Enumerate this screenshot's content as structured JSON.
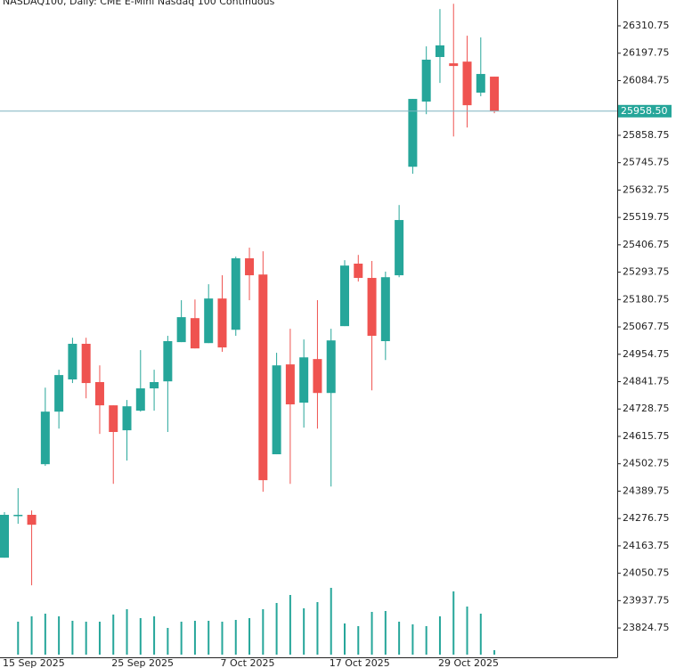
{
  "chart_data": {
    "type": "candlestick",
    "title": "NASDAQ100, Daily:  CME E-Mini Nasdaq 100 Continuous",
    "categories": [
      "15 Sep 2025",
      null,
      null,
      null,
      null,
      null,
      null,
      null,
      "25 Sep 2025",
      null,
      null,
      null,
      null,
      null,
      null,
      null,
      "7 Oct 2025",
      null,
      null,
      null,
      null,
      null,
      null,
      null,
      "17 Oct 2025",
      null,
      null,
      null,
      null,
      null,
      null,
      null,
      "29 Oct 2025",
      null,
      null,
      null,
      null
    ],
    "open": [
      24115,
      24288,
      24292,
      24501,
      24718,
      24851,
      24998,
      24840,
      24744,
      24641,
      24722,
      24814,
      24843,
      25005,
      25104,
      25001,
      25185,
      25056,
      25351,
      25284,
      24542,
      24913,
      24755,
      24935,
      24795,
      25071,
      25329,
      25270,
      25009,
      25281,
      25729,
      25998,
      26182,
      26156,
      26163,
      26035,
      26101
    ],
    "high": [
      24303,
      24402,
      24310,
      24817,
      24891,
      25023,
      25023,
      24909,
      24744,
      24766,
      24972,
      24891,
      25031,
      25178,
      25181,
      25244,
      25281,
      25358,
      25395,
      25380,
      24961,
      25060,
      25016,
      25178,
      25060,
      25343,
      25365,
      25340,
      25296,
      25571,
      26009,
      26226,
      26380,
      26402,
      26270,
      26263,
      26101
    ],
    "low": [
      24115,
      24255,
      24001,
      24494,
      24648,
      24836,
      24773,
      24626,
      24420,
      24516,
      24718,
      24722,
      24634,
      25005,
      24979,
      25001,
      24965,
      25031,
      25178,
      24387,
      24542,
      24420,
      24652,
      24648,
      24409,
      25071,
      25255,
      24806,
      24931,
      25273,
      25700,
      25946,
      26075,
      25854,
      25891,
      26020,
      25950
    ],
    "close": [
      24292,
      24292,
      24251,
      24718,
      24869,
      24998,
      24836,
      24744,
      24634,
      24740,
      24814,
      24840,
      25009,
      25108,
      24979,
      25185,
      24983,
      25351,
      25281,
      24435,
      24909,
      24748,
      24942,
      24795,
      25012,
      25321,
      25270,
      25031,
      25273,
      25509,
      26009,
      26171,
      26230,
      26145,
      25983,
      26112,
      25958.5
    ],
    "volume": [
      null,
      37,
      43,
      46,
      43,
      38,
      37,
      37,
      45,
      51,
      41,
      43,
      30,
      37,
      38,
      38,
      37,
      39,
      41,
      51,
      58,
      67,
      52,
      59,
      75,
      35,
      32,
      48,
      49,
      37,
      34,
      32,
      43,
      71,
      54,
      46,
      5
    ],
    "volume_lim": [
      0,
      100
    ],
    "up_color": "#26a69a",
    "down_color": "#ef5350",
    "ylim": [
      23703.7,
      26417.4
    ],
    "yticks": [
      23824.75,
      23937.75,
      24050.75,
      24163.75,
      24276.75,
      24389.75,
      24502.75,
      24615.75,
      24728.75,
      24841.75,
      24954.75,
      25067.75,
      25180.75,
      25293.75,
      25406.75,
      25519.75,
      25632.75,
      25745.75,
      25858.75,
      26084.75,
      26197.75,
      26310.75
    ],
    "last_price": {
      "value": 25958.5,
      "label": "25958.50"
    },
    "grid": false
  }
}
